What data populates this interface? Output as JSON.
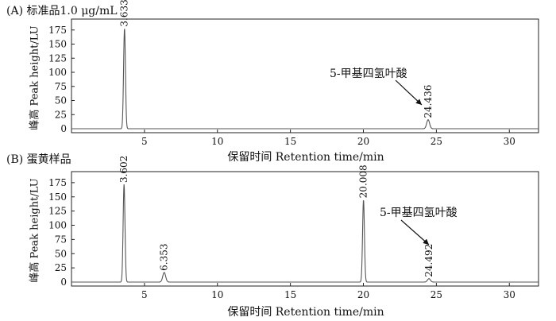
{
  "chart_data": [
    {
      "type": "line",
      "title": "(A) 标准品1.0 μg/mL",
      "xlabel": "保留时间 Retention time/min",
      "ylabel": "峰高 Peak height/LU",
      "xlim": [
        0,
        32
      ],
      "ylim": [
        0,
        200
      ],
      "xticks": [
        5,
        10,
        15,
        20,
        25,
        30
      ],
      "yticks": [
        0,
        25,
        50,
        75,
        100,
        125,
        150,
        175
      ],
      "peaks": [
        {
          "x": 3.633,
          "y": 178,
          "label": "3.633"
        },
        {
          "x": 24.436,
          "y": 16,
          "label": "24.436"
        }
      ],
      "annotation": {
        "text": "5-甲基四氢叶酸",
        "target_x": 24.436
      }
    },
    {
      "type": "line",
      "title": "(B) 蛋黄样品",
      "xlabel": "保留时间 Retention time/min",
      "ylabel": "峰高 Peak height/LU",
      "xlim": [
        0,
        32
      ],
      "ylim": [
        0,
        200
      ],
      "xticks": [
        5,
        10,
        15,
        20,
        25,
        30
      ],
      "yticks": [
        0,
        25,
        50,
        75,
        100,
        125,
        150,
        175
      ],
      "peaks": [
        {
          "x": 3.602,
          "y": 172,
          "label": "3.602"
        },
        {
          "x": 6.353,
          "y": 17,
          "label": "6.353"
        },
        {
          "x": 20.008,
          "y": 145,
          "label": "20.008"
        },
        {
          "x": 24.492,
          "y": 6,
          "label": "24.492"
        }
      ],
      "annotation": {
        "text": "5-甲基四氢叶酸",
        "target_x": 24.492
      }
    }
  ]
}
